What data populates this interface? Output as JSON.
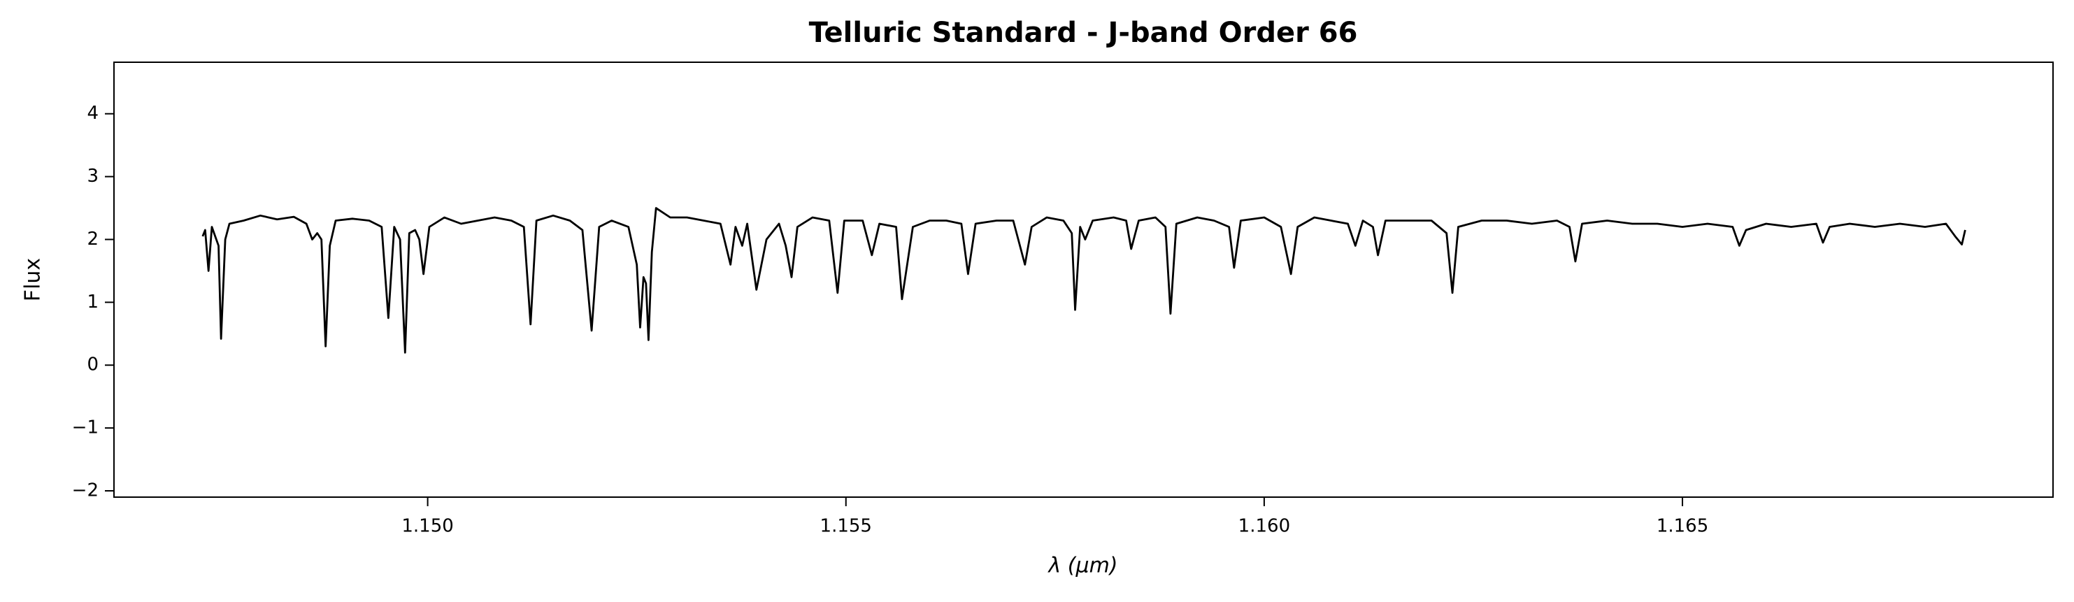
{
  "chart_data": {
    "type": "line",
    "title": "Telluric Standard - J-band Order 66",
    "xlabel": "λ (μm)",
    "ylabel": "Flux",
    "color": "#000000",
    "xlim": [
      1.14625,
      1.16943
    ],
    "ylim": [
      -2.1,
      4.82
    ],
    "xticks": [
      {
        "value": 1.15,
        "label": "1.150"
      },
      1.155,
      {
        "value": 1.16,
        "label": "1.160"
      },
      1.165
    ],
    "yticks": [
      {
        "value": -2,
        "label": "−2"
      },
      {
        "value": -1,
        "label": "−1"
      },
      0,
      1,
      2,
      3,
      4
    ],
    "grid": false,
    "x": [
      1.14731,
      1.14734,
      1.14738,
      1.14742,
      1.14746,
      1.1475,
      1.14753,
      1.14758,
      1.14763,
      1.1478,
      1.148,
      1.1482,
      1.1484,
      1.14855,
      1.14862,
      1.14868,
      1.14873,
      1.14878,
      1.14883,
      1.1489,
      1.1491,
      1.1493,
      1.14945,
      1.14953,
      1.1496,
      1.14967,
      1.14973,
      1.14978,
      1.14985,
      1.1499,
      1.14995,
      1.15002,
      1.1502,
      1.1504,
      1.1506,
      1.1508,
      1.151,
      1.15115,
      1.15123,
      1.1513,
      1.1515,
      1.1517,
      1.15185,
      1.15196,
      1.15205,
      1.1522,
      1.1524,
      1.1525,
      1.15254,
      1.15258,
      1.15261,
      1.15264,
      1.15268,
      1.15273,
      1.1529,
      1.1531,
      1.1533,
      1.1535,
      1.15362,
      1.15368,
      1.15376,
      1.15382,
      1.15393,
      1.15405,
      1.1542,
      1.15428,
      1.15435,
      1.15442,
      1.1546,
      1.1548,
      1.1549,
      1.15498,
      1.1552,
      1.15531,
      1.1554,
      1.1556,
      1.15567,
      1.1558,
      1.156,
      1.1562,
      1.15638,
      1.15646,
      1.15655,
      1.1568,
      1.157,
      1.15714,
      1.15722,
      1.1574,
      1.1576,
      1.1577,
      1.15774,
      1.1578,
      1.15786,
      1.15795,
      1.1582,
      1.15835,
      1.15841,
      1.1585,
      1.1587,
      1.15882,
      1.15888,
      1.15895,
      1.1592,
      1.1594,
      1.15958,
      1.15964,
      1.15972,
      1.16,
      1.1602,
      1.16032,
      1.1604,
      1.1606,
      1.1608,
      1.161,
      1.16109,
      1.16118,
      1.1613,
      1.16136,
      1.16145,
      1.1617,
      1.162,
      1.16218,
      1.16225,
      1.16232,
      1.1626,
      1.1629,
      1.1632,
      1.1635,
      1.16365,
      1.16372,
      1.1638,
      1.1641,
      1.1644,
      1.1647,
      1.165,
      1.1653,
      1.1656,
      1.16568,
      1.16576,
      1.166,
      1.1663,
      1.1666,
      1.16668,
      1.16676,
      1.167,
      1.1673,
      1.1676,
      1.1679,
      1.16815,
      1.16826,
      1.16834,
      1.16838
    ],
    "values": [
      2.05,
      2.15,
      1.5,
      2.2,
      2.05,
      1.9,
      0.42,
      2.0,
      2.25,
      2.3,
      2.38,
      2.32,
      2.36,
      2.25,
      2.0,
      2.1,
      2.0,
      0.3,
      1.9,
      2.3,
      2.33,
      2.3,
      2.2,
      0.75,
      2.2,
      2.0,
      0.2,
      2.1,
      2.15,
      2.0,
      1.45,
      2.2,
      2.35,
      2.25,
      2.3,
      2.35,
      2.3,
      2.2,
      0.65,
      2.3,
      2.38,
      2.3,
      2.15,
      0.55,
      2.2,
      2.3,
      2.2,
      1.6,
      0.6,
      1.4,
      1.3,
      0.4,
      1.8,
      2.5,
      2.35,
      2.35,
      2.3,
      2.25,
      1.6,
      2.2,
      1.9,
      2.25,
      1.2,
      2.0,
      2.25,
      1.9,
      1.4,
      2.2,
      2.35,
      2.3,
      1.15,
      2.3,
      2.3,
      1.75,
      2.25,
      2.2,
      1.05,
      2.2,
      2.3,
      2.3,
      2.25,
      1.45,
      2.25,
      2.3,
      2.3,
      1.6,
      2.2,
      2.35,
      2.3,
      2.1,
      0.88,
      2.2,
      2.0,
      2.3,
      2.35,
      2.3,
      1.85,
      2.3,
      2.35,
      2.2,
      0.82,
      2.25,
      2.35,
      2.3,
      2.2,
      1.55,
      2.3,
      2.35,
      2.2,
      1.45,
      2.2,
      2.35,
      2.3,
      2.25,
      1.9,
      2.3,
      2.2,
      1.75,
      2.3,
      2.3,
      2.3,
      2.1,
      1.15,
      2.2,
      2.3,
      2.3,
      2.25,
      2.3,
      2.2,
      1.65,
      2.25,
      2.3,
      2.25,
      2.25,
      2.2,
      2.25,
      2.2,
      1.9,
      2.15,
      2.25,
      2.2,
      2.25,
      1.95,
      2.2,
      2.25,
      2.2,
      2.25,
      2.2,
      2.25,
      2.05,
      1.92,
      2.15
    ]
  }
}
